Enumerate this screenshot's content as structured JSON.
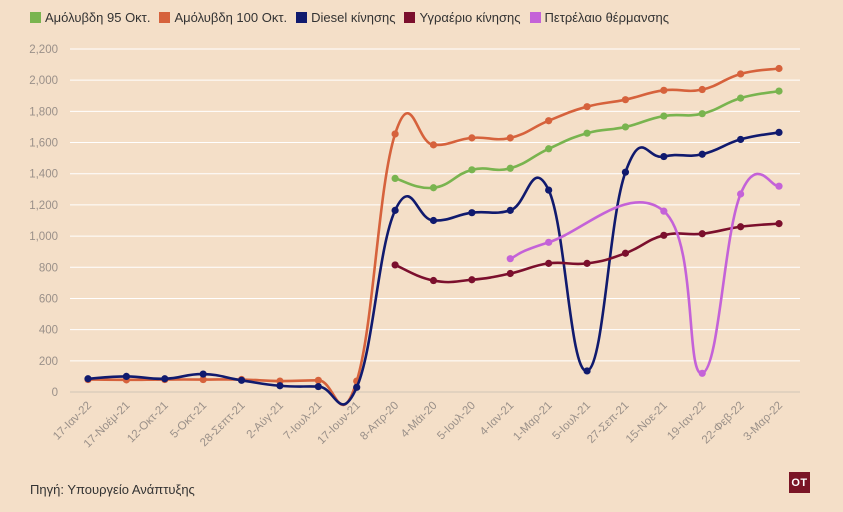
{
  "chart_data": {
    "type": "line",
    "categories": [
      "17-Ιαν-22",
      "17-Νοέμ-21",
      "12-Οκτ-21",
      "5-Οκτ-21",
      "28-Σεπτ-21",
      "2-Αύγ-21",
      "7-Ιουλ-21",
      "17-Ιουν-21",
      "8-Απρ-20",
      "4-Μάι-20",
      "5-Ιουλ-20",
      "4-Ιαν-21",
      "1-Μαρ-21",
      "5-Ιουλ-21",
      "27-Σεπ-21",
      "15-Νοε-21",
      "19-Ιαν-22",
      "22-Φεβ-22",
      "3-Μαρ-22"
    ],
    "y_ticks": [
      "0",
      "200",
      "400",
      "600",
      "800",
      "1,000",
      "1,200",
      "1,400",
      "1,600",
      "1,800",
      "2,000",
      "2,200"
    ],
    "ylim": [
      0,
      2200
    ],
    "grid": true,
    "legend_position": "top-left",
    "series": [
      {
        "name": "Αμόλυβδη 95 Οκτ.",
        "color": "#79b44f",
        "values": [
          null,
          null,
          null,
          null,
          null,
          null,
          null,
          null,
          1370,
          1310,
          1425,
          1435,
          1560,
          1660,
          1700,
          1770,
          1785,
          1885,
          1930
        ]
      },
      {
        "name": "Αμόλυβδη 100 Οκτ.",
        "color": "#d6623c",
        "values": [
          80,
          78,
          80,
          80,
          80,
          70,
          75,
          70,
          1655,
          1585,
          1630,
          1630,
          1740,
          1830,
          1875,
          1935,
          1940,
          2040,
          2075
        ]
      },
      {
        "name": "Diesel κίνησης",
        "color": "#101a6e",
        "values": [
          85,
          100,
          85,
          115,
          75,
          40,
          35,
          30,
          1165,
          1100,
          1150,
          1165,
          1295,
          135,
          1410,
          1510,
          1525,
          1620,
          1665
        ]
      },
      {
        "name": "Υγραέριο κίνησης",
        "color": "#7b0f2d",
        "values": [
          null,
          null,
          null,
          null,
          null,
          null,
          null,
          null,
          815,
          715,
          720,
          760,
          825,
          825,
          890,
          1005,
          1015,
          1060,
          1080
        ]
      },
      {
        "name": "Πετρέλαιο θέρμανσης",
        "color": "#c462d8",
        "values": [
          null,
          null,
          null,
          null,
          null,
          null,
          null,
          null,
          null,
          null,
          null,
          855,
          960,
          null,
          null,
          1160,
          120,
          1270,
          1320
        ]
      }
    ]
  },
  "source": "Πηγή: Υπουργείο Ανάπτυξης",
  "logo": "ΟΤ"
}
